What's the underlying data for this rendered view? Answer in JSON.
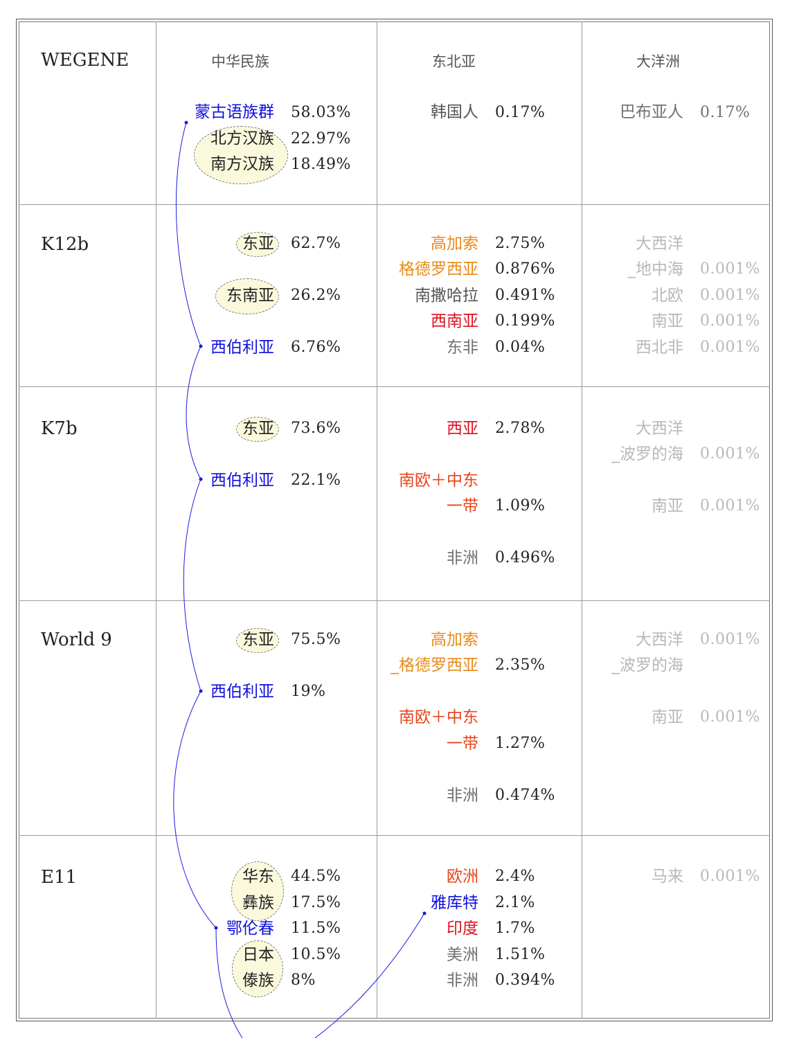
{
  "headers": {
    "corner": "WEGENE",
    "col1": "中华民族",
    "col2": "东北亚",
    "col3": "大洋洲"
  },
  "rows": {
    "wegene": {
      "col1": [
        {
          "label": "蒙古语族群",
          "value": "58.03%"
        },
        {
          "label": "北方汉族",
          "value": "22.97%"
        },
        {
          "label": "南方汉族",
          "value": "18.49%"
        }
      ],
      "col2": [
        {
          "label": "韩国人",
          "value": "0.17%"
        }
      ],
      "col3": [
        {
          "label": "巴布亚人",
          "value": "0.17%"
        }
      ]
    },
    "k12b": {
      "name": "K12b",
      "col1": [
        {
          "label": "东亚",
          "value": "62.7%"
        },
        {
          "label": "东南亚",
          "value": "26.2%"
        },
        {
          "label": "西伯利亚",
          "value": "6.76%"
        }
      ],
      "col2": [
        {
          "label": "高加索",
          "value": "2.75%"
        },
        {
          "label": "格德罗西亚",
          "value": "0.876%"
        },
        {
          "label": "南撒哈拉",
          "value": "0.491%"
        },
        {
          "label": "西南亚",
          "value": "0.199%"
        },
        {
          "label": "东非",
          "value": "0.04%"
        }
      ],
      "col3": [
        {
          "label": "大西洋"
        },
        {
          "label": "_地中海",
          "value": "0.001%"
        },
        {
          "label": "北欧",
          "value": "0.001%"
        },
        {
          "label": "南亚",
          "value": "0.001%"
        },
        {
          "label": "西北非",
          "value": "0.001%"
        }
      ]
    },
    "k7b": {
      "name": "K7b",
      "col1": [
        {
          "label": "东亚",
          "value": "73.6%"
        },
        {
          "label": "西伯利亚",
          "value": "22.1%"
        }
      ],
      "col2": [
        {
          "label": "西亚",
          "value": "2.78%"
        },
        {
          "label": "南欧＋中东"
        },
        {
          "label": "一带",
          "value": "1.09%"
        },
        {
          "label": "非洲",
          "value": "0.496%"
        }
      ],
      "col3": [
        {
          "label": "大西洋"
        },
        {
          "label": "_波罗的海",
          "value": "0.001%"
        },
        {
          "label": "南亚",
          "value": "0.001%"
        }
      ]
    },
    "world9": {
      "name": "World 9",
      "col1": [
        {
          "label": "东亚",
          "value": "75.5%"
        },
        {
          "label": "西伯利亚",
          "value": "19%"
        }
      ],
      "col2": [
        {
          "label": "高加索"
        },
        {
          "label": "_格德罗西亚",
          "value": "2.35%"
        },
        {
          "label": "南欧＋中东"
        },
        {
          "label": "一带",
          "value": "1.27%"
        },
        {
          "label": "非洲",
          "value": "0.474%"
        }
      ],
      "col3": [
        {
          "label": "大西洋",
          "value": "0.001%"
        },
        {
          "label": "_波罗的海"
        },
        {
          "label": "南亚",
          "value": "0.001%"
        }
      ]
    },
    "e11": {
      "name": "E11",
      "col1": [
        {
          "label": "华东",
          "value": "44.5%"
        },
        {
          "label": "彝族",
          "value": "17.5%"
        },
        {
          "label": "鄂伦春",
          "value": "11.5%"
        },
        {
          "label": "日本",
          "value": "10.5%"
        },
        {
          "label": "傣族",
          "value": "8%"
        }
      ],
      "col2": [
        {
          "label": "欧洲",
          "value": "2.4%"
        },
        {
          "label": "雅库特",
          "value": "2.1%"
        },
        {
          "label": "印度",
          "value": "1.7%"
        },
        {
          "label": "美洲",
          "value": "1.51%"
        },
        {
          "label": "非洲",
          "value": "0.394%"
        }
      ],
      "col3": [
        {
          "label": "马来",
          "value": "0.001%"
        }
      ]
    }
  },
  "colors": {
    "link_blue": "#1010dd",
    "highlight_fill": "#fbf9dc",
    "orange": "#e88a1a",
    "red": "#dd1020",
    "red_orange": "#e8441a",
    "faint": "#b8b8b8"
  }
}
